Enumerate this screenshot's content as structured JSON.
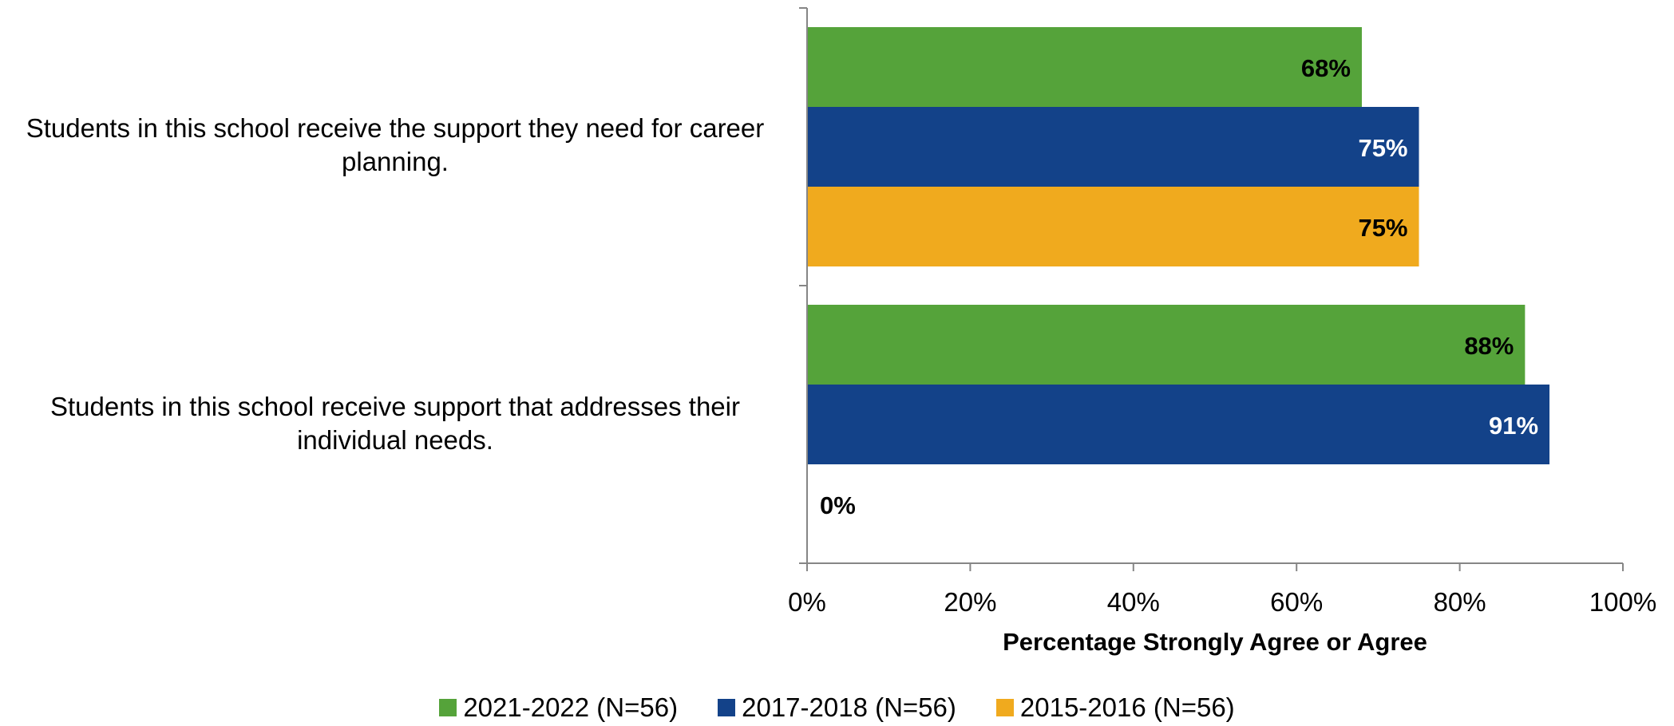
{
  "chart_data": {
    "type": "bar",
    "orientation": "horizontal",
    "categories": [
      "Students in this school receive the support they need for career planning.",
      "Students in this school receive support that addresses their individual needs."
    ],
    "series": [
      {
        "name": "2021-2022 (N=56)",
        "color": "#55a33a",
        "values": [
          68,
          88
        ],
        "labels": [
          "68%",
          "88%"
        ]
      },
      {
        "name": "2017-2018 (N=56)",
        "color": "#134289",
        "values": [
          75,
          91
        ],
        "labels": [
          "75%",
          "91%"
        ]
      },
      {
        "name": "2015-2016 (N=56)",
        "color": "#f0aa1e",
        "values": [
          75,
          0
        ],
        "labels": [
          "75%",
          "0%"
        ]
      }
    ],
    "xlabel": "Percentage Strongly Agree or Agree",
    "xlim": [
      0,
      100
    ],
    "xticks": [
      "0%",
      "20%",
      "40%",
      "60%",
      "80%",
      "100%"
    ],
    "legend_position": "bottom",
    "grid": false
  }
}
